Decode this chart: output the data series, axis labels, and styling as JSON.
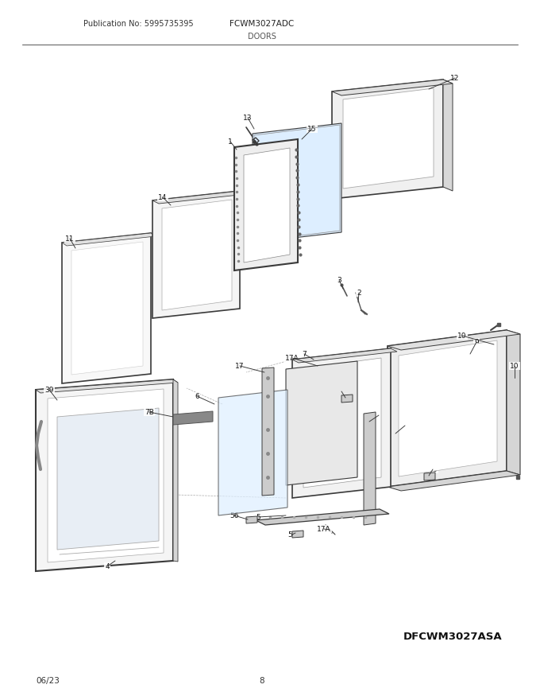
{
  "title_pub": "Publication No: 5995735395",
  "title_model": "FCWM3027ADC",
  "title_section": "DOORS",
  "footer_date": "06/23",
  "footer_page": "8",
  "footer_model": "DFCWM3027ASA",
  "bg_color": "#ffffff",
  "lc": "#3a3a3a",
  "tc": "#222222"
}
